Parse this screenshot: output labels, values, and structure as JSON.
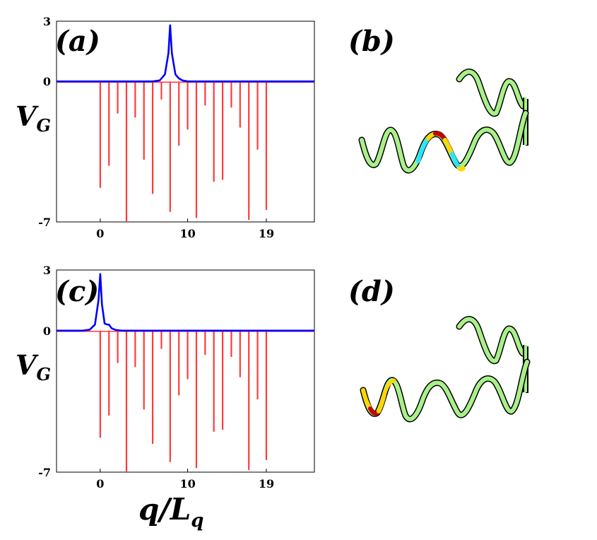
{
  "figure": {
    "xlabel_main": "q/L",
    "xlabel_sub": "q",
    "ylabel_main": "V",
    "ylabel_sub": "G"
  },
  "colors": {
    "wavefunction": "#0000ff",
    "potential": "#ff3b3b",
    "helix": "#a9f08a",
    "helix_edge": "#000000",
    "highlight_red": "#c80000",
    "highlight_yellow": "#ffd700",
    "highlight_cyan": "#26e5ff"
  },
  "panels": [
    {
      "id": "a",
      "label": "(a)"
    },
    {
      "id": "b",
      "label": "(b)"
    },
    {
      "id": "c",
      "label": "(c)"
    },
    {
      "id": "d",
      "label": "(d)"
    }
  ],
  "chart_data": [
    {
      "panel": "a",
      "type": "line",
      "xlim": [
        -5,
        24.5
      ],
      "ylim": [
        -7,
        3
      ],
      "xticks": [
        0,
        10,
        19
      ],
      "yticks": [
        3,
        0,
        -7
      ],
      "grid": false,
      "legend": false,
      "series": [
        {
          "kind": "spikes",
          "color": "potential",
          "x": [
            0,
            1,
            2,
            3,
            4,
            5,
            6,
            7,
            8,
            9,
            10,
            11,
            12,
            13,
            14,
            15,
            16,
            17,
            18,
            19
          ],
          "values": [
            -5.3,
            -4.2,
            -1.6,
            -7.0,
            -1.8,
            -3.9,
            -5.6,
            -0.9,
            -6.5,
            -3.2,
            -2.4,
            -6.8,
            -1.2,
            -5.0,
            -4.9,
            -1.3,
            -2.3,
            -6.9,
            -3.4,
            -6.4
          ]
        },
        {
          "kind": "peak",
          "color": "wavefunction",
          "x": [
            -5,
            6,
            6.8,
            7.4,
            7.8,
            8.0,
            8.2,
            8.6,
            9.0,
            9.4,
            10,
            24.5
          ],
          "values": [
            0,
            0,
            0.05,
            0.35,
            1.4,
            2.8,
            1.4,
            0.35,
            0.15,
            0.05,
            0,
            0
          ]
        }
      ]
    },
    {
      "panel": "c",
      "type": "line",
      "xlim": [
        -5,
        24.5
      ],
      "ylim": [
        -7,
        3
      ],
      "xticks": [
        0,
        10,
        19
      ],
      "yticks": [
        3,
        0,
        -7
      ],
      "grid": false,
      "legend": false,
      "series": [
        {
          "kind": "spikes",
          "color": "potential",
          "x": [
            0,
            1,
            2,
            3,
            4,
            5,
            6,
            7,
            8,
            9,
            10,
            11,
            12,
            13,
            14,
            15,
            16,
            17,
            18,
            19
          ],
          "values": [
            -5.3,
            -4.2,
            -1.6,
            -7.0,
            -1.8,
            -3.9,
            -5.6,
            -0.9,
            -6.5,
            -3.2,
            -2.4,
            -6.8,
            -1.2,
            -5.0,
            -4.9,
            -1.3,
            -2.3,
            -6.9,
            -3.4,
            -6.4
          ]
        },
        {
          "kind": "peak",
          "color": "wavefunction",
          "x": [
            -5,
            -2,
            -1.2,
            -0.6,
            -0.2,
            0,
            0.2,
            0.5,
            0.8,
            1.0,
            1.3,
            1.8,
            2.5,
            24.5
          ],
          "values": [
            0,
            0,
            0.05,
            0.3,
            1.5,
            2.8,
            1.3,
            0.35,
            0.3,
            0.3,
            0.12,
            0.03,
            0,
            0
          ]
        }
      ]
    }
  ]
}
